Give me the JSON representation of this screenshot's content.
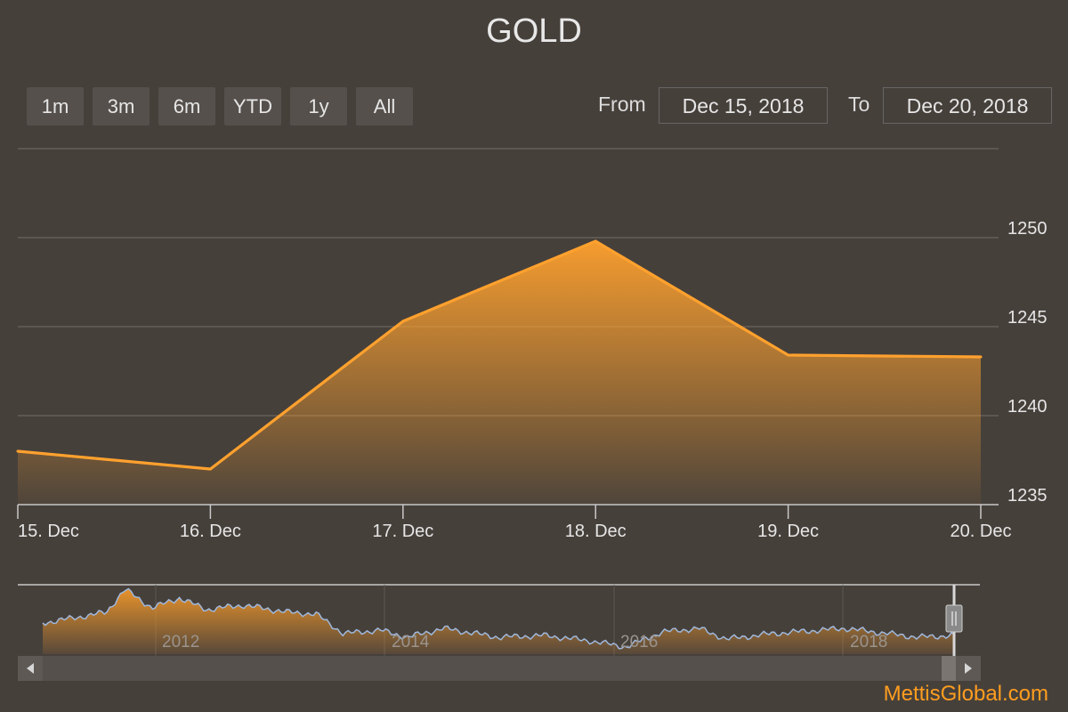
{
  "title": "GOLD",
  "range_buttons": [
    "1m",
    "3m",
    "6m",
    "YTD",
    "1y",
    "All"
  ],
  "from_label": "From",
  "from_value": "Dec 15, 2018",
  "to_label": "To",
  "to_value": "Dec 20, 2018",
  "credit": "MettisGlobal.com",
  "colors": {
    "accent": "#ffa12e",
    "background": "#46403b",
    "navigator_line": "#9fb8dc",
    "credit": "#ff9d1f"
  },
  "chart_data": {
    "type": "area",
    "title": "GOLD",
    "x": [
      "15. Dec",
      "16. Dec",
      "17. Dec",
      "18. Dec",
      "19. Dec",
      "20. Dec"
    ],
    "series": [
      {
        "values": [
          1238.0,
          1237.0,
          1245.3,
          1249.8,
          1243.4,
          1243.3
        ]
      }
    ],
    "yticks": [
      1235,
      1240,
      1245,
      1250
    ],
    "ylim": [
      1235,
      1255
    ],
    "grid": true,
    "navigator": {
      "years": [
        "2012",
        "2014",
        "2016",
        "2018"
      ]
    }
  }
}
